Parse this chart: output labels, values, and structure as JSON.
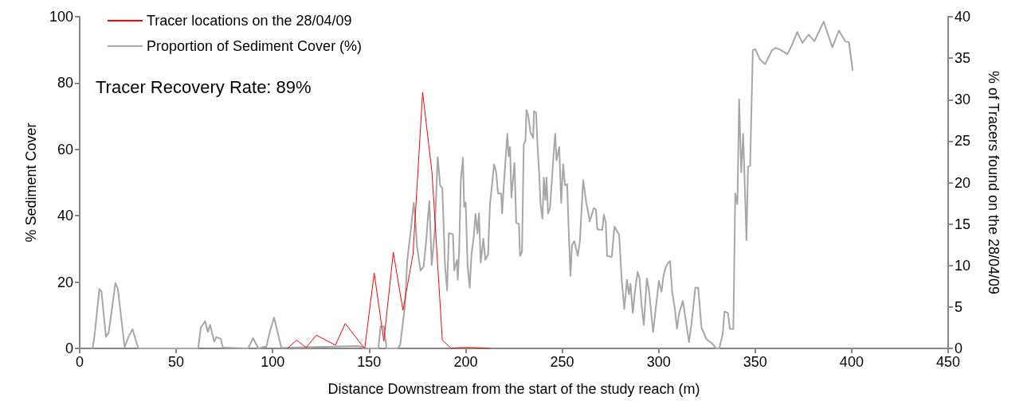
{
  "chart_data": {
    "type": "line",
    "xlabel": "Distance Downstream from the start of the study reach (m)",
    "ylabel": "% Sediment Cover",
    "y2label": "% of Tracers found on the 28/04/09",
    "annotations": [
      "Tracer Recovery Rate: 89%"
    ],
    "xlim": [
      0,
      450
    ],
    "xticks": [
      0,
      50,
      100,
      150,
      200,
      250,
      300,
      350,
      400,
      450
    ],
    "ylim": [
      0,
      100
    ],
    "yticks": [
      0,
      20,
      40,
      60,
      80,
      100
    ],
    "y2lim": [
      0,
      40
    ],
    "y2ticks": [
      0,
      5,
      10,
      15,
      20,
      25,
      30,
      35,
      40
    ],
    "grid": false,
    "legend": "top left",
    "marker": "none",
    "line_style": "solid",
    "series": [
      {
        "name": "Tracer locations on the 28/04/09",
        "color": "#ff0000",
        "axis": "y2",
        "x": [
          107.7,
          112.4,
          117.4,
          122.6,
          132.5,
          137.6,
          145.9,
          147.7,
          152.6,
          157.6,
          162.5,
          167.5,
          172.7,
          177.7,
          182.6,
          187.9,
          192.6,
          197.5,
          203,
          212.6
        ],
        "values": [
          0,
          1,
          0.1,
          1.6,
          0.4,
          3,
          0.5,
          0,
          9.1,
          0.9,
          11.6,
          4.6,
          11.3,
          30.9,
          21.1,
          1,
          0,
          0.1,
          0.1,
          0
        ]
      },
      {
        "name": "Proportion of Sediment Cover (%)",
        "color": "#a6a6a6",
        "x": [
          6.7,
          7.7,
          10.2,
          11.3,
          13.6,
          15,
          16,
          18.5,
          19.8,
          23.3,
          25.3,
          27.4,
          30.2,
          30.6,
          61.4,
          62.8,
          65,
          66.4,
          67.6,
          69.7,
          70.8,
          73.1,
          74.2,
          77.7,
          87.3,
          89.8,
          92.6,
          95.6,
          96.7,
          98.6,
          100.7,
          102.5,
          104.5,
          143.8,
          146.6,
          147,
          154.8,
          155.9,
          157.6,
          159,
          164.8,
          166.1,
          168.6,
          169.7,
          171.4,
          173.1,
          173.8,
          174.8,
          176.6,
          178.2,
          179.6,
          180.3,
          181.2,
          182.4,
          184,
          185.5,
          186.8,
          187.9,
          189.3,
          190.4,
          191.3,
          193.4,
          194.1,
          195.5,
          195.9,
          196.6,
          197.5,
          198.6,
          199.2,
          200,
          201,
          202.1,
          203,
          204.1,
          205.1,
          206.1,
          206.9,
          207.8,
          209.2,
          210.2,
          211.6,
          212.6,
          213.7,
          214.7,
          215.8,
          216.8,
          218.4,
          218.9,
          219.8,
          221.6,
          222.3,
          223,
          223.7,
          225.3,
          226.2,
          227.6,
          228.2,
          229.2,
          230.1,
          231,
          231.5,
          232.4,
          233.6,
          235,
          235.4,
          236.5,
          237.2,
          238.1,
          238.8,
          239.8,
          240.5,
          241.3,
          241.9,
          242.7,
          243.7,
          244.6,
          245.5,
          246.4,
          247.1,
          248.5,
          249.5,
          250.5,
          251.5,
          252.6,
          253.3,
          254.3,
          255.1,
          256.3,
          258.1,
          259.2,
          259.8,
          260.9,
          262.3,
          264.3,
          266.4,
          267.5,
          268.2,
          270.8,
          271.6,
          272.6,
          273.3,
          275.7,
          277.1,
          279.5,
          280.9,
          282.2,
          283.6,
          284.6,
          285.4,
          286.6,
          287.7,
          289.1,
          290.1,
          291.2,
          292.3,
          293.9,
          295,
          297.1,
          299.1,
          300.1,
          301.5,
          302.5,
          303.6,
          305,
          305.9,
          307,
          308.4,
          309.5,
          310.5,
          312.5,
          313.5,
          315.7,
          317.1,
          319,
          320.5,
          322.2,
          324.9,
          327.7,
          329.8,
          331.4,
          333.2,
          334.1,
          335.9,
          336.9,
          338.7,
          339.7,
          340.8,
          341.7,
          342.8,
          343.8,
          345.5,
          346.3,
          347.4,
          348.8,
          350.1,
          352.5,
          355.2,
          358.7,
          360.7,
          363.5,
          366.7,
          369,
          371.8,
          374.5,
          377.7,
          380.7,
          385.5,
          390,
          393.4,
          396.6,
          398.6,
          400.5
        ],
        "values": [
          0,
          3.9,
          17.9,
          17.1,
          3.5,
          4.7,
          8.7,
          19.7,
          17.9,
          0.3,
          3.5,
          5.8,
          0.3,
          0,
          0,
          6.3,
          8.2,
          5,
          7.1,
          2.1,
          3.4,
          2.9,
          0.3,
          0.2,
          0,
          3.1,
          0,
          0.5,
          0.5,
          5.1,
          9.3,
          5,
          0.2,
          0.7,
          0.5,
          0,
          0,
          6.6,
          6.6,
          0,
          0,
          1.1,
          13.1,
          26.3,
          34.7,
          43.9,
          39.5,
          30.7,
          23.5,
          24.6,
          32.7,
          38.3,
          44.4,
          25.1,
          35.5,
          57.7,
          49.1,
          48.3,
          25.1,
          17.5,
          34.7,
          34.5,
          23.5,
          26.7,
          20.7,
          29.1,
          50.7,
          57.5,
          42.7,
          44,
          25.1,
          18.3,
          28.3,
          33.1,
          40.5,
          34.7,
          40.7,
          25.9,
          33.1,
          26.7,
          28.3,
          43.5,
          49.5,
          55.5,
          53.1,
          46.7,
          46.7,
          40.7,
          49.5,
          64.7,
          57.9,
          60.7,
          45.5,
          55.9,
          37.9,
          37.5,
          27.9,
          29.1,
          61.5,
          62.7,
          71.9,
          70.3,
          65.1,
          63.5,
          71.5,
          71.1,
          61.5,
          52.7,
          43.5,
          39.1,
          51.5,
          44.7,
          51.5,
          40.7,
          42.3,
          49.9,
          57.9,
          64.7,
          56.7,
          60.7,
          43.9,
          55.5,
          49.1,
          49.5,
          37.1,
          21.9,
          31.1,
          32.3,
          27.9,
          32.3,
          39.1,
          50.7,
          44.7,
          38.3,
          42.3,
          41.9,
          35.9,
          35.7,
          40.3,
          38,
          27.9,
          27.6,
          36.7,
          34.3,
          20.3,
          11.9,
          20.7,
          16.3,
          19.5,
          10.7,
          17.1,
          23.1,
          21.1,
          12.7,
          7.1,
          21.1,
          17.5,
          4.9,
          15.1,
          20.3,
          17.1,
          21.9,
          24.3,
          25.9,
          26.3,
          17.1,
          11.9,
          5.9,
          10.3,
          14.3,
          10.7,
          1.9,
          7.9,
          18.3,
          18.3,
          6.3,
          2.7,
          1.5,
          0,
          0,
          4.3,
          11.1,
          10.7,
          5.9,
          5.9,
          46.7,
          43.5,
          75.1,
          53.1,
          64.7,
          32.7,
          54.7,
          55.1,
          89.9,
          90.2,
          87.1,
          85.7,
          89.9,
          90.6,
          89.9,
          88.7,
          91.4,
          95.4,
          92.1,
          94.6,
          92.6,
          98.5,
          90.8,
          95.8,
          92.6,
          92.3,
          83.9
        ]
      }
    ]
  }
}
